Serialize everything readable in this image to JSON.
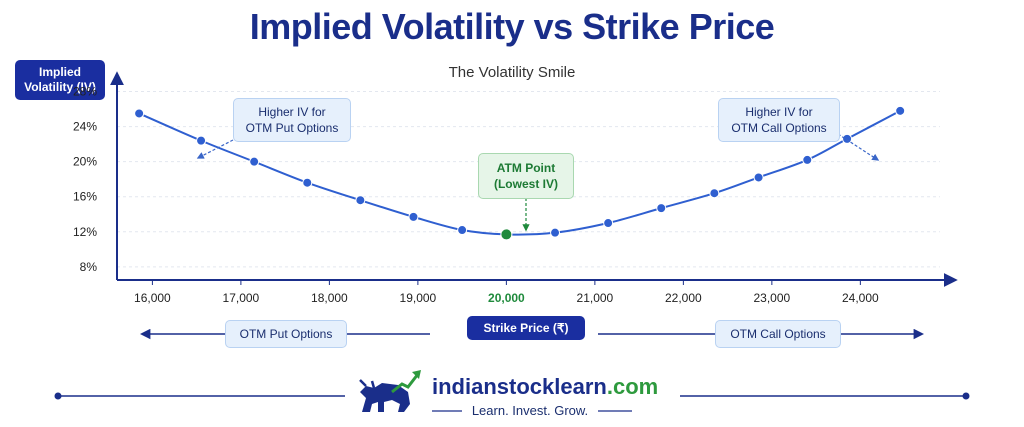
{
  "title": "Implied Volatility vs Strike Price",
  "subtitle": "The Volatility Smile",
  "y_axis_box": "Implied\nVolatility (IV)",
  "x_axis_pill": "Strike Price (₹)",
  "left_region": "OTM Put Options",
  "right_region": "OTM Call Options",
  "callouts": {
    "left": "Higher IV for\nOTM Put Options",
    "right": "Higher IV for\nOTM Call Options",
    "atm": "ATM Point\n(Lowest IV)"
  },
  "brand": {
    "name": "indianstocklearn",
    "tld": ".com",
    "tagline": "Learn. Invest. Grow.",
    "logo_icon": "bull-with-rising-arrow-icon"
  },
  "colors": {
    "navy": "#1a2e8a",
    "line": "#2f5fd0",
    "point": "#2f5fd0",
    "atm_point": "#1f8a3c",
    "green": "#2e9a3e"
  },
  "chart_data": {
    "type": "line",
    "title": "Implied Volatility vs Strike Price",
    "subtitle": "The Volatility Smile",
    "xlabel": "Strike Price (₹)",
    "ylabel": "Implied Volatility (IV)",
    "x_ticks": [
      "16,000",
      "17,000",
      "18,000",
      "19,000",
      "20,000",
      "21,000",
      "22,000",
      "23,000",
      "24,000"
    ],
    "y_ticks": [
      "8%",
      "12%",
      "16%",
      "20%",
      "24%",
      "28%"
    ],
    "xlim": [
      15600,
      24900
    ],
    "ylim": [
      6.5,
      30
    ],
    "grid": true,
    "series": [
      {
        "x": [
          15850,
          16550,
          17150,
          17750,
          18350,
          18950,
          19500,
          20000,
          20550,
          21150,
          21750,
          22350,
          22850,
          23400,
          23850,
          24450
        ],
        "y": [
          25.5,
          22.4,
          20.0,
          17.6,
          15.6,
          13.7,
          12.2,
          11.7,
          11.9,
          13.0,
          14.7,
          16.4,
          18.2,
          20.2,
          22.6,
          25.8
        ]
      }
    ],
    "highlight": {
      "x": 20000,
      "y": 11.7,
      "label": "ATM Point\n(Lowest IV)"
    }
  }
}
